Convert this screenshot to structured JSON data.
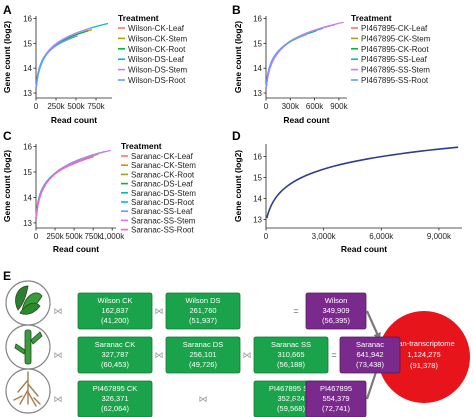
{
  "panels": {
    "A": "A",
    "B": "B",
    "C": "C",
    "D": "D",
    "E": "E"
  },
  "chart_data": [
    {
      "type": "line",
      "panel": "A",
      "xlabel": "Read count",
      "ylabel": "Gene count (log2)",
      "xlim": [
        0,
        950000
      ],
      "ylim": [
        12.8,
        16.1
      ],
      "x_ticks": [
        0,
        250000,
        500000,
        750000
      ],
      "x_tick_labels": [
        "0",
        "250k",
        "500k",
        "750k"
      ],
      "y_ticks": [
        13,
        14,
        15,
        16
      ],
      "y_tick_labels": [
        "13",
        "14",
        "15",
        "16"
      ],
      "legend_title": "Treatment",
      "series": [
        {
          "name": "Wilson-CK-Leaf",
          "color": "#f8766d",
          "x_max": 480000,
          "y_end": 15.25
        },
        {
          "name": "Wilson-CK-Stem",
          "color": "#b79f00",
          "x_max": 700000,
          "y_end": 15.55
        },
        {
          "name": "Wilson-CK-Root",
          "color": "#00ba38",
          "x_max": 650000,
          "y_end": 15.5
        },
        {
          "name": "Wilson-DS-Leaf",
          "color": "#00bfc4",
          "x_max": 900000,
          "y_end": 15.8
        },
        {
          "name": "Wilson-DS-Stem",
          "color": "#c77cff",
          "x_max": 680000,
          "y_end": 15.6
        },
        {
          "name": "Wilson-DS-Root",
          "color": "#619cff",
          "x_max": 520000,
          "y_end": 15.3
        }
      ]
    },
    {
      "type": "line",
      "panel": "B",
      "xlabel": "Read count",
      "ylabel": "Gene count (log2)",
      "xlim": [
        0,
        1000000
      ],
      "ylim": [
        12.8,
        16.1
      ],
      "x_ticks": [
        0,
        300000,
        600000,
        900000
      ],
      "x_tick_labels": [
        "0",
        "300k",
        "600k",
        "900k"
      ],
      "y_ticks": [
        13,
        14,
        15,
        16
      ],
      "y_tick_labels": [
        "13",
        "14",
        "15",
        "16"
      ],
      "legend_title": "Treatment",
      "series": [
        {
          "name": "PI467895-CK-Leaf",
          "color": "#f8766d",
          "x_max": 850000,
          "y_end": 15.75
        },
        {
          "name": "PI467895-CK-Stem",
          "color": "#b79f00",
          "x_max": 780000,
          "y_end": 15.7
        },
        {
          "name": "PI467895-CK-Root",
          "color": "#00ba38",
          "x_max": 620000,
          "y_end": 15.5
        },
        {
          "name": "PI467895-SS-Leaf",
          "color": "#00bfc4",
          "x_max": 700000,
          "y_end": 15.6
        },
        {
          "name": "PI467895-SS-Stem",
          "color": "#c77cff",
          "x_max": 960000,
          "y_end": 15.85
        },
        {
          "name": "PI467895-SS-Root",
          "color": "#619cff",
          "x_max": 500000,
          "y_end": 15.35
        }
      ]
    },
    {
      "type": "line",
      "panel": "C",
      "xlabel": "Read count",
      "ylabel": "Gene count (log2)",
      "xlim": [
        0,
        1050000
      ],
      "ylim": [
        12.8,
        16.1
      ],
      "x_ticks": [
        0,
        250000,
        500000,
        750000,
        1000000
      ],
      "x_tick_labels": [
        "0",
        "250k",
        "500k",
        "750k",
        "1,000k"
      ],
      "y_ticks": [
        13,
        14,
        15,
        16
      ],
      "y_tick_labels": [
        "13",
        "14",
        "15",
        "16"
      ],
      "legend_title": "Treatment",
      "series": [
        {
          "name": "Saranac-CK-Leaf",
          "color": "#f8766d",
          "x_max": 600000,
          "y_end": 15.45
        },
        {
          "name": "Saranac-CK-Stem",
          "color": "#d39200",
          "x_max": 560000,
          "y_end": 15.4
        },
        {
          "name": "Saranac-CK-Root",
          "color": "#93aa00",
          "x_max": 820000,
          "y_end": 15.7
        },
        {
          "name": "Saranac-DS-Leaf",
          "color": "#00ba38",
          "x_max": 700000,
          "y_end": 15.55
        },
        {
          "name": "Saranac-DS-Stem",
          "color": "#00c19f",
          "x_max": 900000,
          "y_end": 15.8
        },
        {
          "name": "Saranac-DS-Root",
          "color": "#00b9e3",
          "x_max": 520000,
          "y_end": 15.35
        },
        {
          "name": "Saranac-SS-Leaf",
          "color": "#619cff",
          "x_max": 650000,
          "y_end": 15.5
        },
        {
          "name": "Saranac-SS-Stem",
          "color": "#db72fb",
          "x_max": 980000,
          "y_end": 15.85
        },
        {
          "name": "Saranac-SS-Root",
          "color": "#ff61c3",
          "x_max": 760000,
          "y_end": 15.6
        }
      ]
    },
    {
      "type": "line",
      "panel": "D",
      "xlabel": "Read count",
      "ylabel": "Gene count (log2)",
      "xlim": [
        0,
        10200000
      ],
      "ylim": [
        12.6,
        16.6
      ],
      "x_ticks": [
        0,
        3000000,
        6000000,
        9000000
      ],
      "x_tick_labels": [
        "0",
        "3,000k",
        "6,000k",
        "9,000k"
      ],
      "y_ticks": [
        13,
        14,
        15,
        16
      ],
      "y_tick_labels": [
        "13",
        "14",
        "15",
        "16"
      ],
      "series": [
        {
          "name": "",
          "color": "#2f3e8c",
          "x_max": 10000000,
          "y_end": 16.45
        }
      ]
    }
  ],
  "diagram": {
    "rows": [
      {
        "icon": "leaf",
        "boxes": [
          {
            "title": "Wilson CK",
            "value": "162,837",
            "sub": "(41,200)"
          },
          {
            "title": "Wilson DS",
            "value": "261,760",
            "sub": "(51,937)"
          }
        ],
        "total": {
          "title": "Wilson",
          "value": "349,909",
          "sub": "(56,395)"
        }
      },
      {
        "icon": "stem",
        "boxes": [
          {
            "title": "Saranac CK",
            "value": "327,787",
            "sub": "(60,453)"
          },
          {
            "title": "Saranac DS",
            "value": "256,101",
            "sub": "(49,726)"
          },
          {
            "title": "Saranac SS",
            "value": "310,665",
            "sub": "(56,188)"
          }
        ],
        "total": {
          "title": "Saranac",
          "value": "641,942",
          "sub": "(73,438)"
        }
      },
      {
        "icon": "root",
        "boxes": [
          {
            "title": "PI467895 CK",
            "value": "326,371",
            "sub": "(62,064)"
          },
          {
            "title": "PI467895 SS",
            "value": "352,824",
            "sub": "(59,568)"
          }
        ],
        "total": {
          "title": "PI467895",
          "value": "554,379",
          "sub": "(72,741)"
        }
      }
    ],
    "equals": "=",
    "pan": {
      "title": "Pan-transcriptome",
      "value": "1,124,275",
      "sub": "(91,378)"
    },
    "colors": {
      "green": "#1aa34a",
      "purple": "#7a2a8c",
      "red": "#e8141c",
      "arrow": "#7a7a7a"
    }
  }
}
